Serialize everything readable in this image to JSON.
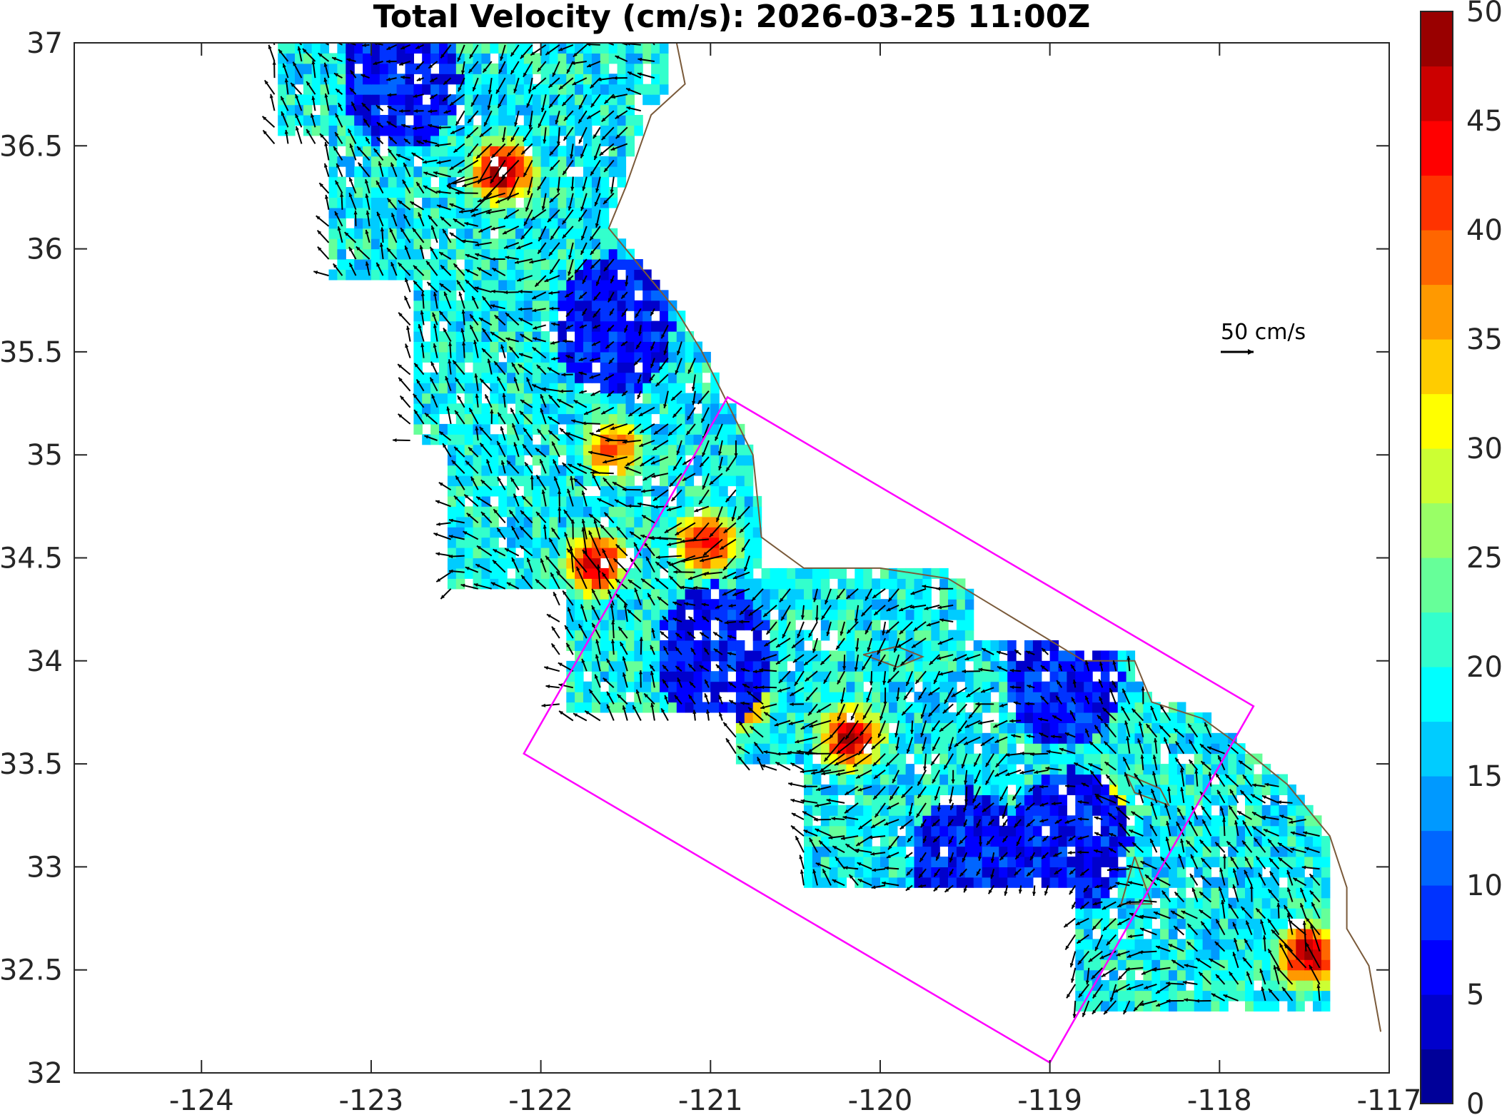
{
  "title": "Total Velocity (cm/s): 2026-03-25 11:00Z",
  "reference_arrow_label": "50 cm/s",
  "x_axis": {
    "min": -124.75,
    "max": -117.0,
    "ticks": [
      "-124",
      "-123",
      "-122",
      "-121",
      "-120",
      "-119",
      "-118",
      "-117"
    ],
    "tick_values": [
      -124,
      -123,
      -122,
      -121,
      -120,
      -119,
      -118,
      -117
    ]
  },
  "y_axis": {
    "min": 32.0,
    "max": 37.0,
    "ticks": [
      "32",
      "32.5",
      "33",
      "33.5",
      "34",
      "34.5",
      "35",
      "35.5",
      "36",
      "36.5",
      "37"
    ],
    "tick_values": [
      32,
      32.5,
      33,
      33.5,
      34,
      34.5,
      35,
      35.5,
      36,
      36.5,
      37
    ]
  },
  "colorbar": {
    "min": 0,
    "max": 50,
    "ticks": [
      "0",
      "5",
      "10",
      "15",
      "20",
      "25",
      "30",
      "35",
      "40",
      "45",
      "50"
    ],
    "tick_values": [
      0,
      5,
      10,
      15,
      20,
      25,
      30,
      35,
      40,
      45,
      50
    ],
    "colormap": "jet",
    "bands": 20
  },
  "box": {
    "color": "#ff00ff",
    "corners": [
      [
        -122.1,
        33.55
      ],
      [
        -120.9,
        35.28
      ],
      [
        -117.8,
        33.78
      ],
      [
        -119.0,
        32.05
      ]
    ]
  },
  "coastline_color": "#7a5a3a",
  "arrow_color": "#000000",
  "colors": {
    "frame": "#262626",
    "background": "#ffffff"
  }
}
